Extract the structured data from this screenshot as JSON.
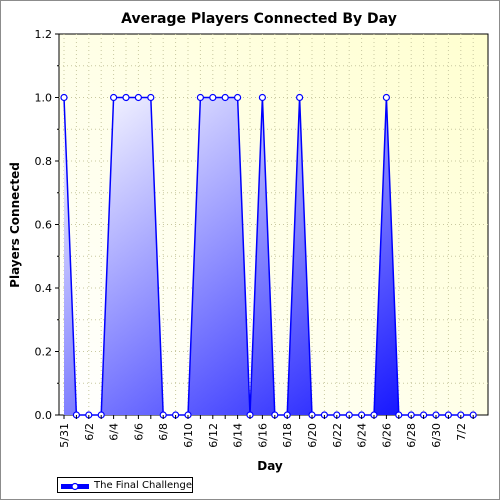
{
  "chart_data": {
    "type": "area",
    "title": "Average Players Connected By Day",
    "xlabel": "Day",
    "ylabel": "Players Connected",
    "ylim": [
      0,
      1.2
    ],
    "yticks": [
      "0.0",
      "0.2",
      "0.4",
      "0.6",
      "0.8",
      "1.0",
      "1.2"
    ],
    "x": [
      "5/31",
      "6/1",
      "6/2",
      "6/3",
      "6/4",
      "6/5",
      "6/6",
      "6/7",
      "6/8",
      "6/9",
      "6/10",
      "6/11",
      "6/12",
      "6/13",
      "6/14",
      "6/15",
      "6/16",
      "6/17",
      "6/18",
      "6/19",
      "6/20",
      "6/21",
      "6/22",
      "6/23",
      "6/24",
      "6/25",
      "6/26",
      "6/27",
      "6/28",
      "6/29",
      "6/30",
      "7/1",
      "7/2",
      "7/3"
    ],
    "xtick_labels": [
      "5/31",
      "6/2",
      "6/4",
      "6/6",
      "6/8",
      "6/10",
      "6/12",
      "6/14",
      "6/16",
      "6/18",
      "6/20",
      "6/22",
      "6/24",
      "6/26",
      "6/28",
      "6/30",
      "7/2"
    ],
    "series": [
      {
        "name": "The Final Challenge",
        "values": [
          1,
          0,
          0,
          0,
          1,
          1,
          1,
          1,
          0,
          0,
          0,
          1,
          1,
          1,
          1,
          0,
          1,
          0,
          0,
          1,
          0,
          0,
          0,
          0,
          0,
          0,
          1,
          0,
          0,
          0,
          0,
          0,
          0,
          0
        ]
      }
    ],
    "grid": true,
    "legend": "bottom-left",
    "colors": {
      "line": "#0000ff",
      "fill_light": "#ffffff",
      "fill_dark": "#0000ff",
      "plot_bg": "#ffffe8"
    }
  }
}
